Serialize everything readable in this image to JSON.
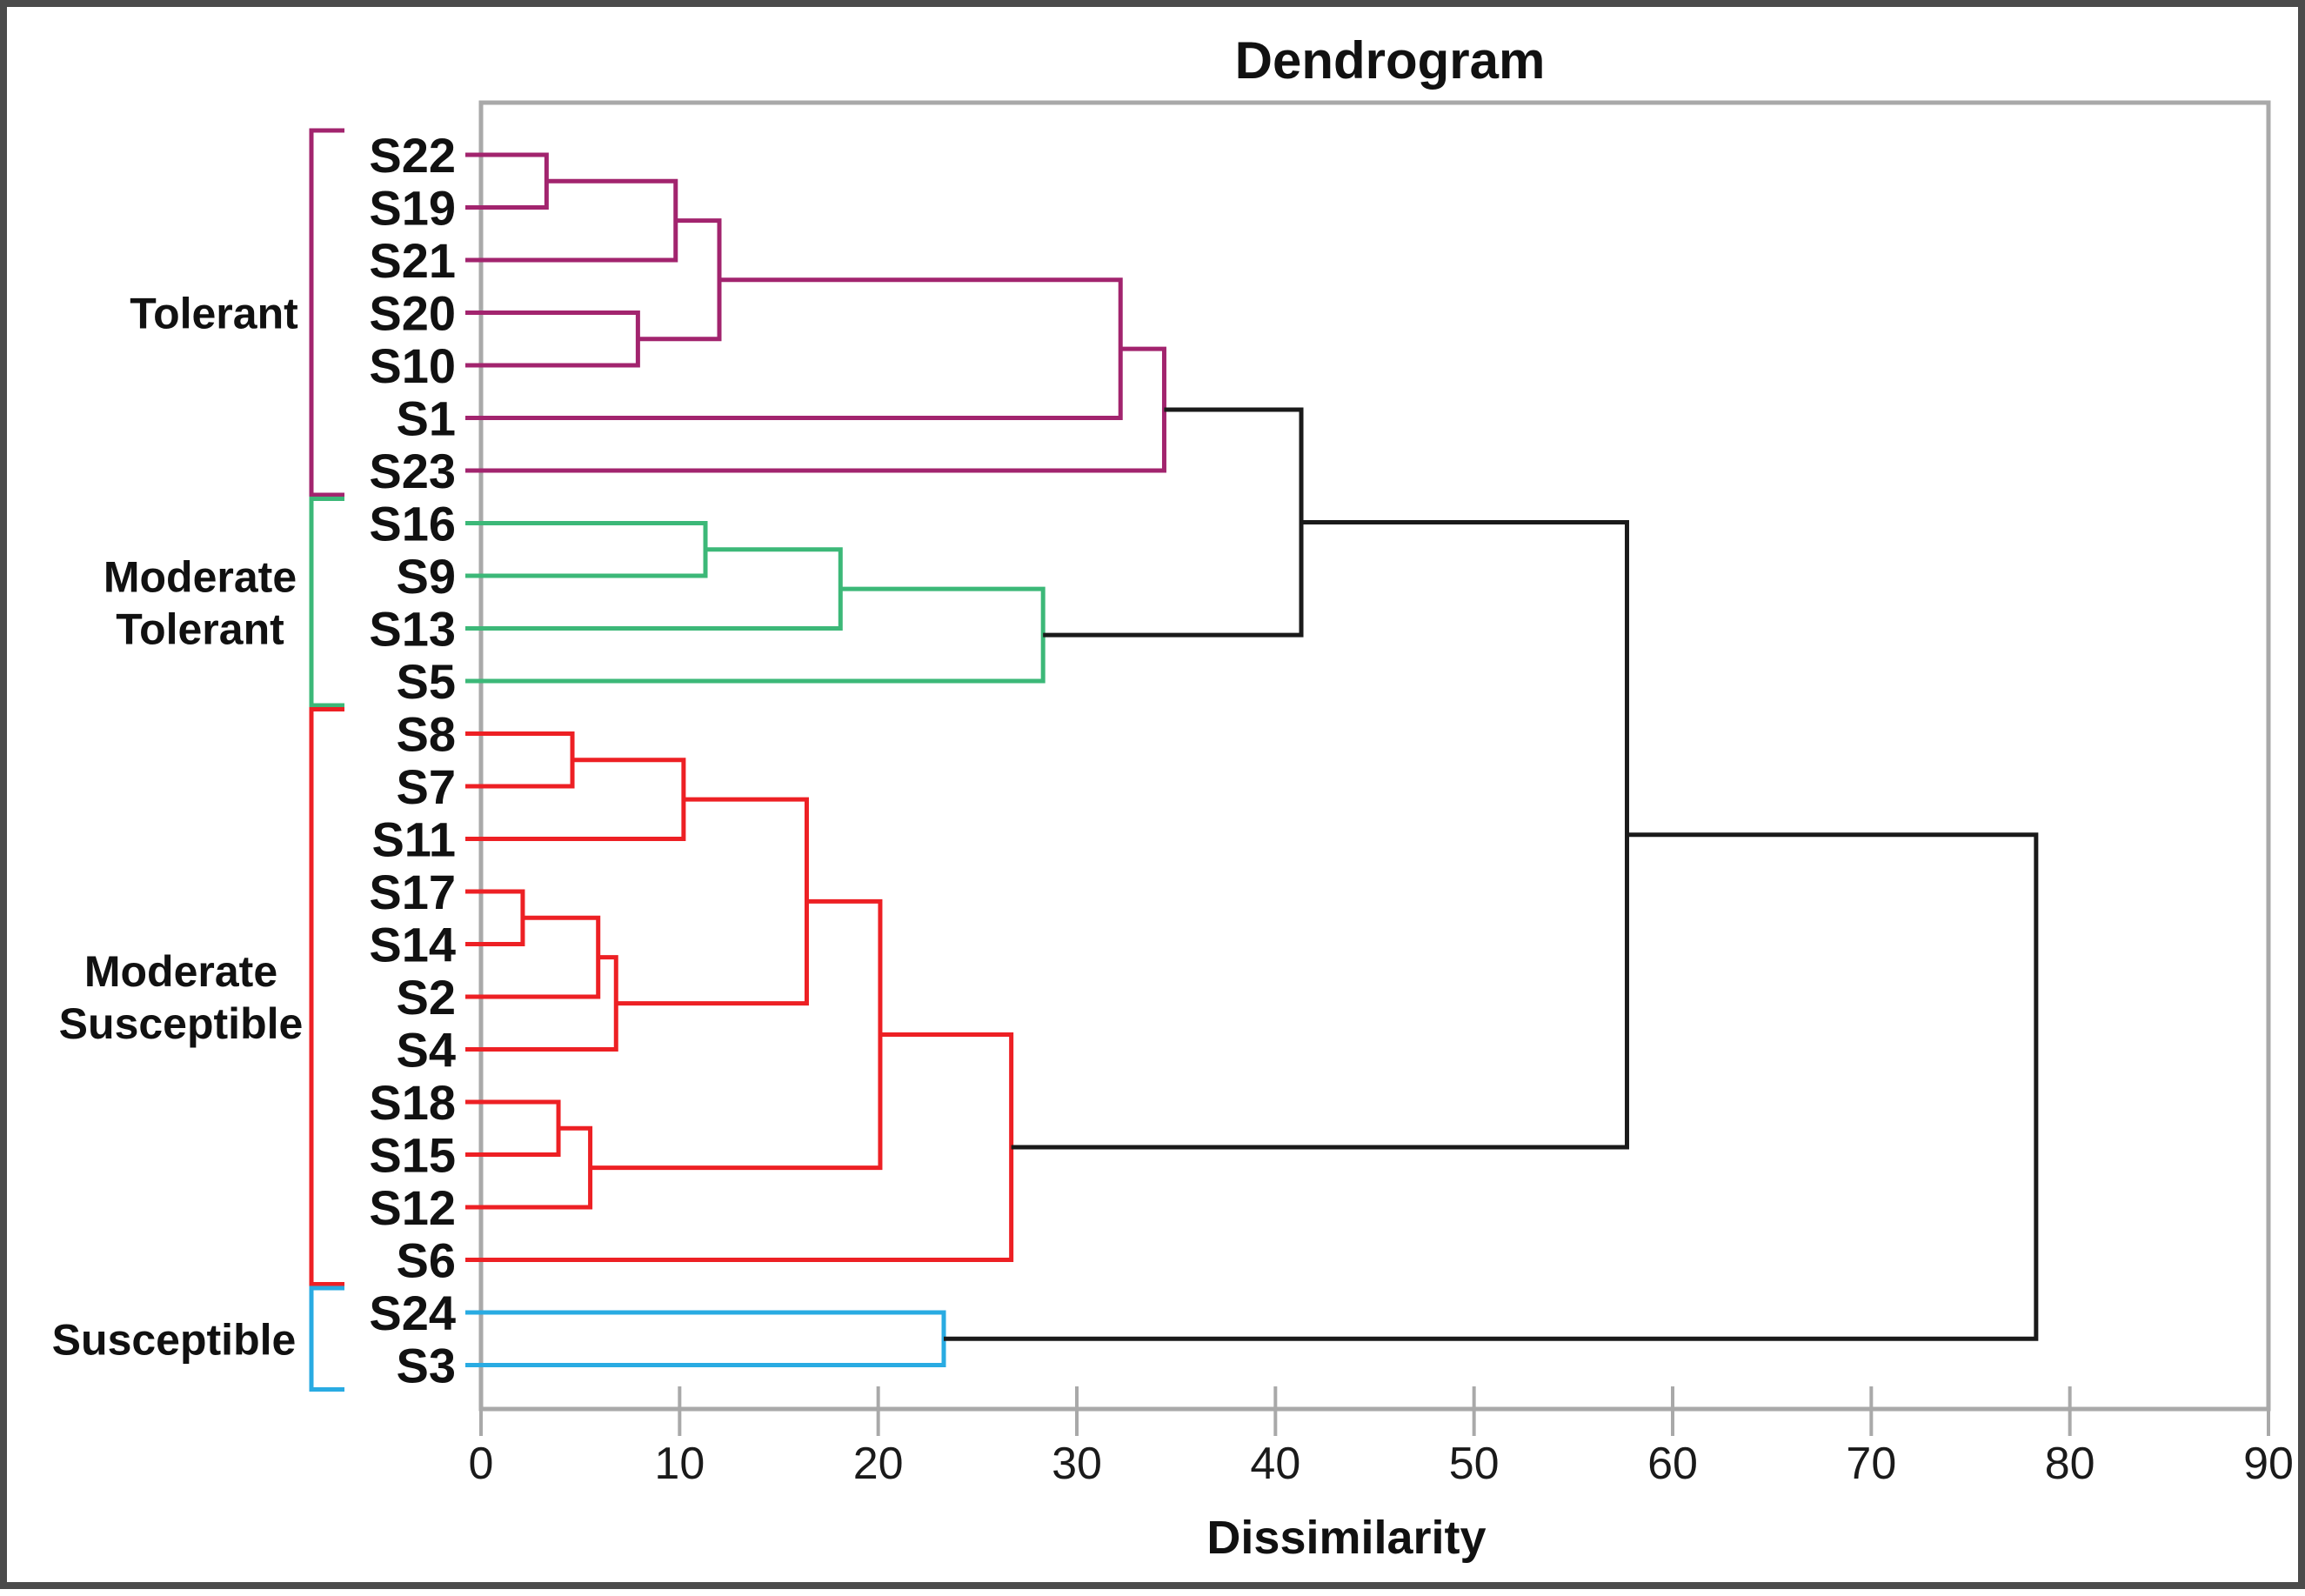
{
  "chart_data": {
    "type": "dendrogram",
    "title": "Dendrogram",
    "xlabel": "Dissimilarity",
    "x_axis": {
      "min": 0,
      "max": 90,
      "tick_step": 10,
      "ticks": [
        0,
        10,
        20,
        30,
        40,
        50,
        60,
        70,
        80,
        90
      ]
    },
    "leaves": [
      "S22",
      "S19",
      "S21",
      "S20",
      "S10",
      "S1",
      "S23",
      "S16",
      "S9",
      "S13",
      "S5",
      "S8",
      "S7",
      "S11",
      "S17",
      "S14",
      "S2",
      "S4",
      "S18",
      "S15",
      "S12",
      "S6",
      "S24",
      "S3"
    ],
    "palette": {
      "tolerant": "#A2246E",
      "moderate_tolerant": "#3CB878",
      "moderate_susceptible": "#ED2024",
      "susceptible": "#29ABE2",
      "link_black": "#1A1A1A"
    },
    "groups": [
      {
        "label_lines": [
          "Tolerant"
        ],
        "color_key": "tolerant",
        "first_leaf": "S22",
        "last_leaf": "S23",
        "label_x": 238
      },
      {
        "label_lines": [
          "Moderate",
          "Tolerant"
        ],
        "color_key": "moderate_tolerant",
        "first_leaf": "S16",
        "last_leaf": "S5",
        "label_x": 222
      },
      {
        "label_lines": [
          "Moderate",
          "Susceptible"
        ],
        "color_key": "moderate_susceptible",
        "first_leaf": "S8",
        "last_leaf": "S6",
        "label_x": 200
      },
      {
        "label_lines": [
          "Susceptible"
        ],
        "color_key": "susceptible",
        "first_leaf": "S24",
        "last_leaf": "S3",
        "label_x": 192
      }
    ],
    "tree": {
      "h": 78.3,
      "c": "link_black",
      "children": [
        {
          "h": 57.7,
          "c": "link_black",
          "children": [
            {
              "h": 41.3,
              "c": "link_black",
              "children": [
                {
                  "h": 34.4,
                  "c": "tolerant",
                  "children": [
                    {
                      "h": 32.2,
                      "c": "tolerant",
                      "children": [
                        {
                          "h": 12.0,
                          "c": "tolerant",
                          "children": [
                            {
                              "h": 9.8,
                              "c": "tolerant",
                              "children": [
                                {
                                  "h": 3.3,
                                  "c": "tolerant",
                                  "children": [
                                    "S22",
                                    "S19"
                                  ]
                                },
                                "S21"
                              ]
                            },
                            {
                              "h": 7.9,
                              "c": "tolerant",
                              "children": [
                                "S20",
                                "S10"
                              ]
                            }
                          ]
                        },
                        "S1"
                      ]
                    },
                    "S23"
                  ]
                },
                {
                  "h": 28.3,
                  "c": "moderate_tolerant",
                  "children": [
                    {
                      "h": 18.1,
                      "c": "moderate_tolerant",
                      "children": [
                        {
                          "h": 11.3,
                          "c": "moderate_tolerant",
                          "children": [
                            "S16",
                            "S9"
                          ]
                        },
                        "S13"
                      ]
                    },
                    "S5"
                  ]
                }
              ]
            },
            {
              "h": 26.7,
              "c": "moderate_susceptible",
              "children": [
                {
                  "h": 20.1,
                  "c": "moderate_susceptible",
                  "children": [
                    {
                      "h": 16.4,
                      "c": "moderate_susceptible",
                      "children": [
                        {
                          "h": 10.2,
                          "c": "moderate_susceptible",
                          "children": [
                            {
                              "h": 4.6,
                              "c": "moderate_susceptible",
                              "children": [
                                "S8",
                                "S7"
                              ]
                            },
                            "S11"
                          ]
                        },
                        {
                          "h": 6.8,
                          "c": "moderate_susceptible",
                          "children": [
                            {
                              "h": 5.9,
                              "c": "moderate_susceptible",
                              "children": [
                                {
                                  "h": 2.1,
                                  "c": "moderate_susceptible",
                                  "children": [
                                    "S17",
                                    "S14"
                                  ]
                                },
                                "S2"
                              ]
                            },
                            "S4"
                          ]
                        }
                      ]
                    },
                    {
                      "h": 5.5,
                      "c": "moderate_susceptible",
                      "children": [
                        {
                          "h": 3.9,
                          "c": "moderate_susceptible",
                          "children": [
                            "S18",
                            "S15"
                          ]
                        },
                        "S12"
                      ]
                    }
                  ]
                },
                "S6"
              ]
            }
          ]
        },
        {
          "h": 23.3,
          "c": "susceptible",
          "children": [
            "S24",
            "S3"
          ]
        }
      ]
    }
  }
}
